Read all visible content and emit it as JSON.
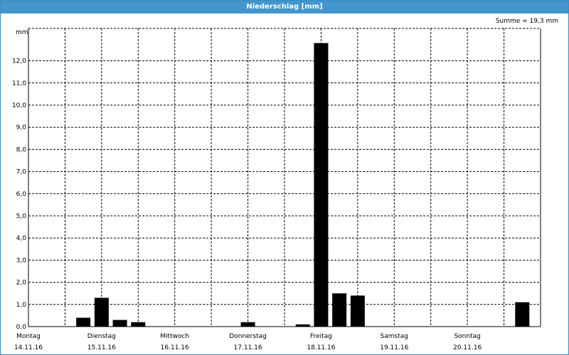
{
  "window": {
    "title": "Niederschlag [mm]"
  },
  "summary": {
    "text": "Summe = 19,3 mm"
  },
  "colors": {
    "title_bar": "#4296cc",
    "bars": "#000000",
    "grid": "#000000"
  },
  "chart_data": {
    "type": "bar",
    "title": "Niederschlag [mm]",
    "ylabel": "mm",
    "xlabel": "",
    "ylim": [
      0,
      13
    ],
    "yticks": [
      "0,0",
      "1,0",
      "2,0",
      "3,0",
      "4,0",
      "5,0",
      "6,0",
      "7,0",
      "8,0",
      "9,0",
      "10,0",
      "11,0",
      "12,0"
    ],
    "grid": true,
    "day_labels": [
      {
        "day": "Montag",
        "date": "14.11.16"
      },
      {
        "day": "Dienstag",
        "date": "15.11.16"
      },
      {
        "day": "Mittwoch",
        "date": "16.11.16"
      },
      {
        "day": "Donnerstag",
        "date": "17.11.16"
      },
      {
        "day": "Freitag",
        "date": "18.11.16"
      },
      {
        "day": "Samstag",
        "date": "19.11.16"
      },
      {
        "day": "Sonntag",
        "date": "20.11.16"
      }
    ],
    "x_unit": "hours since 14.11.16 00:00",
    "x_range_hours": [
      0,
      168
    ],
    "bars": [
      {
        "hour": 18,
        "value": 0.4
      },
      {
        "hour": 24,
        "value": 1.3
      },
      {
        "hour": 30,
        "value": 0.3
      },
      {
        "hour": 36,
        "value": 0.2
      },
      {
        "hour": 72,
        "value": 0.2
      },
      {
        "hour": 90,
        "value": 0.1
      },
      {
        "hour": 96,
        "value": 12.8
      },
      {
        "hour": 102,
        "value": 1.5
      },
      {
        "hour": 108,
        "value": 1.4
      },
      {
        "hour": 162,
        "value": 1.1
      }
    ],
    "summe": "Summe = 19,3 mm"
  }
}
